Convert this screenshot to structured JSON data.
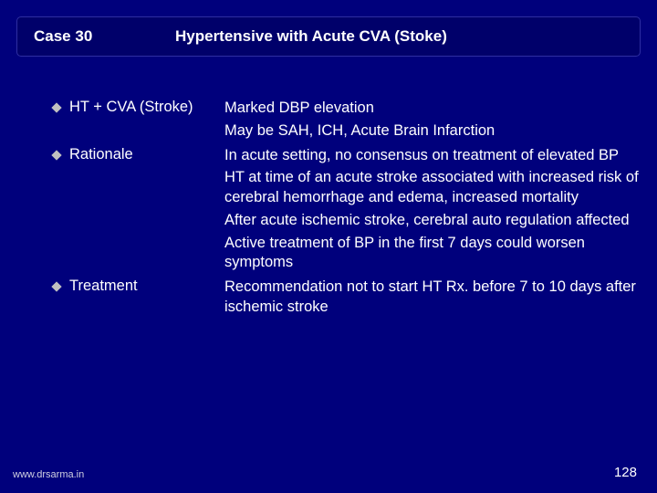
{
  "header": {
    "case_label": "Case 30",
    "title": "Hypertensive with Acute CVA (Stoke)"
  },
  "items": [
    {
      "label": "HT + CVA (Stroke)",
      "paras": [
        "Marked DBP elevation",
        "May be SAH, ICH, Acute Brain Infarction"
      ]
    },
    {
      "label": "Rationale",
      "paras": [
        "In acute setting, no consensus on treatment of elevated BP",
        "HT at time of an acute stroke associated with increased risk of cerebral hemorrhage and edema, increased mortality",
        "After acute ischemic stroke, cerebral auto regulation affected",
        "Active treatment of BP in the first 7 days could  worsen symptoms"
      ]
    },
    {
      "label": "Treatment",
      "paras": [
        "Recommendation not to start HT Rx. before 7 to 10 days after ischemic stroke"
      ]
    }
  ],
  "footer": {
    "url": "www.drsarma.in",
    "page": "128"
  },
  "style": {
    "background": "#00007c",
    "header_bg": "#00006a",
    "diamond_color": "#c0c0c0",
    "text_color": "#ffffff"
  }
}
